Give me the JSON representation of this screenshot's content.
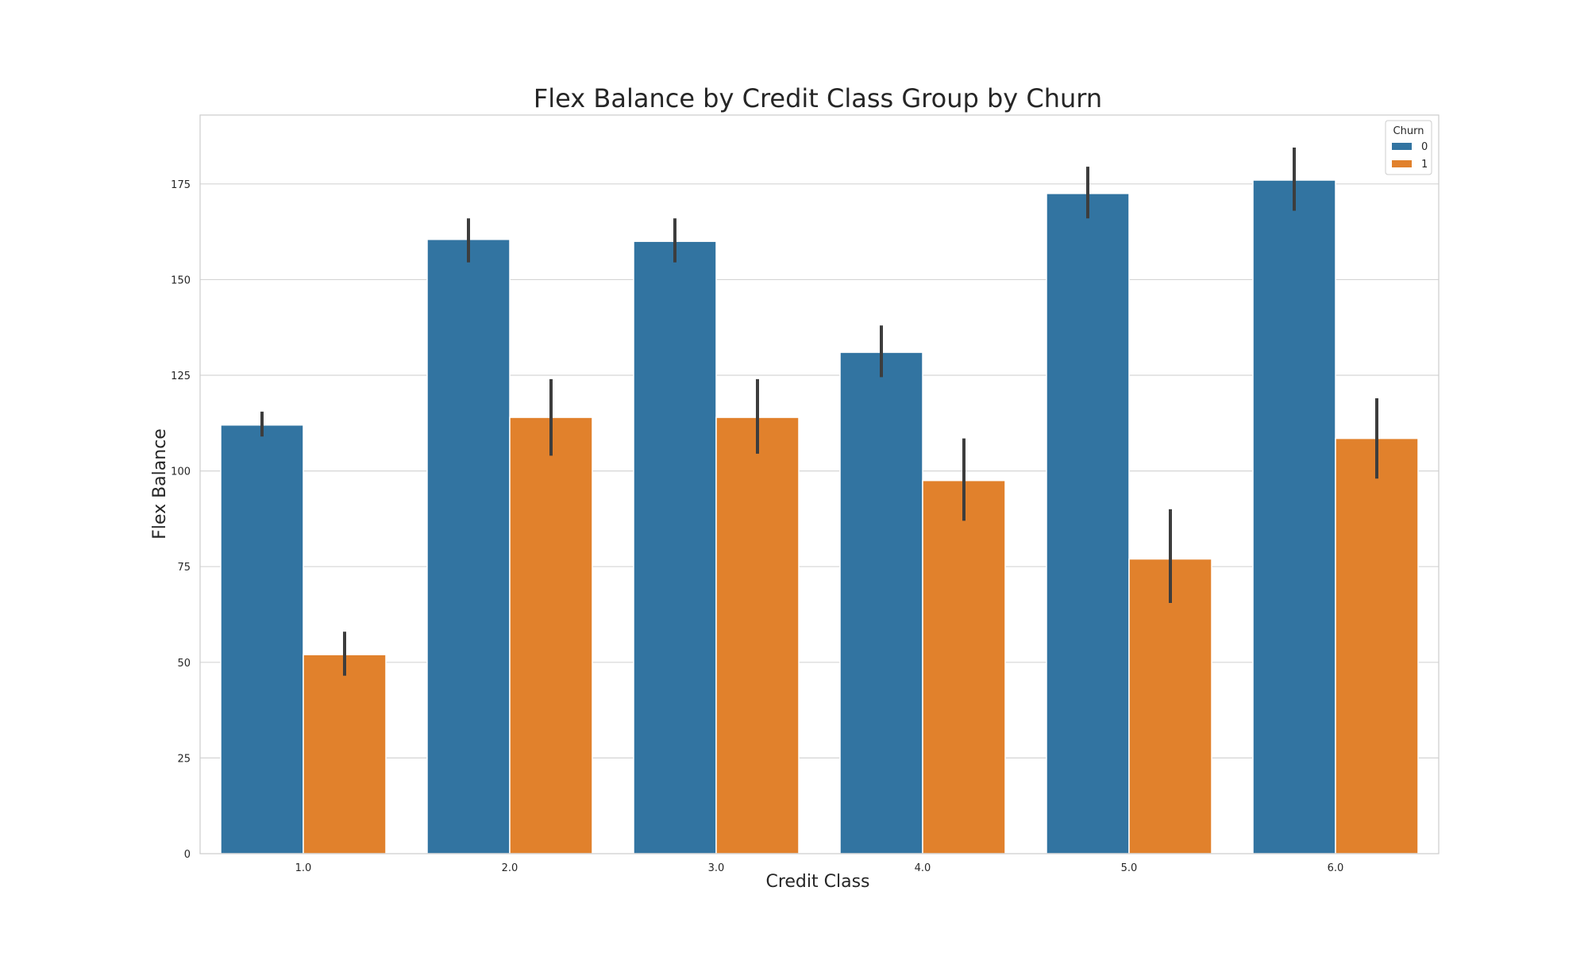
{
  "chart_data": {
    "type": "bar",
    "title": "Flex Balance by Credit Class Group by Churn",
    "xlabel": "Credit Class",
    "ylabel": "Flex Balance",
    "categories": [
      "1.0",
      "2.0",
      "3.0",
      "4.0",
      "5.0",
      "6.0"
    ],
    "ylim": [
      0,
      193
    ],
    "yticks": [
      "0",
      "25",
      "50",
      "75",
      "100",
      "125",
      "150",
      "175"
    ],
    "grid": true,
    "legend": {
      "title": "Churn",
      "placement": "top-right"
    },
    "series": [
      {
        "name": "0",
        "color": "#3274a1",
        "values": [
          112,
          160.5,
          160,
          131,
          172.5,
          176
        ],
        "ci_low": [
          109,
          154.5,
          154.5,
          124.5,
          166,
          168
        ],
        "ci_high": [
          115.5,
          166,
          166,
          138,
          179.5,
          184.5
        ]
      },
      {
        "name": "1",
        "color": "#e1812c",
        "values": [
          52,
          114,
          114,
          97.5,
          77,
          108.5
        ],
        "ci_low": [
          46.5,
          104,
          104.5,
          87,
          65.5,
          98
        ],
        "ci_high": [
          58,
          124,
          124,
          108.5,
          90,
          119
        ]
      }
    ]
  }
}
